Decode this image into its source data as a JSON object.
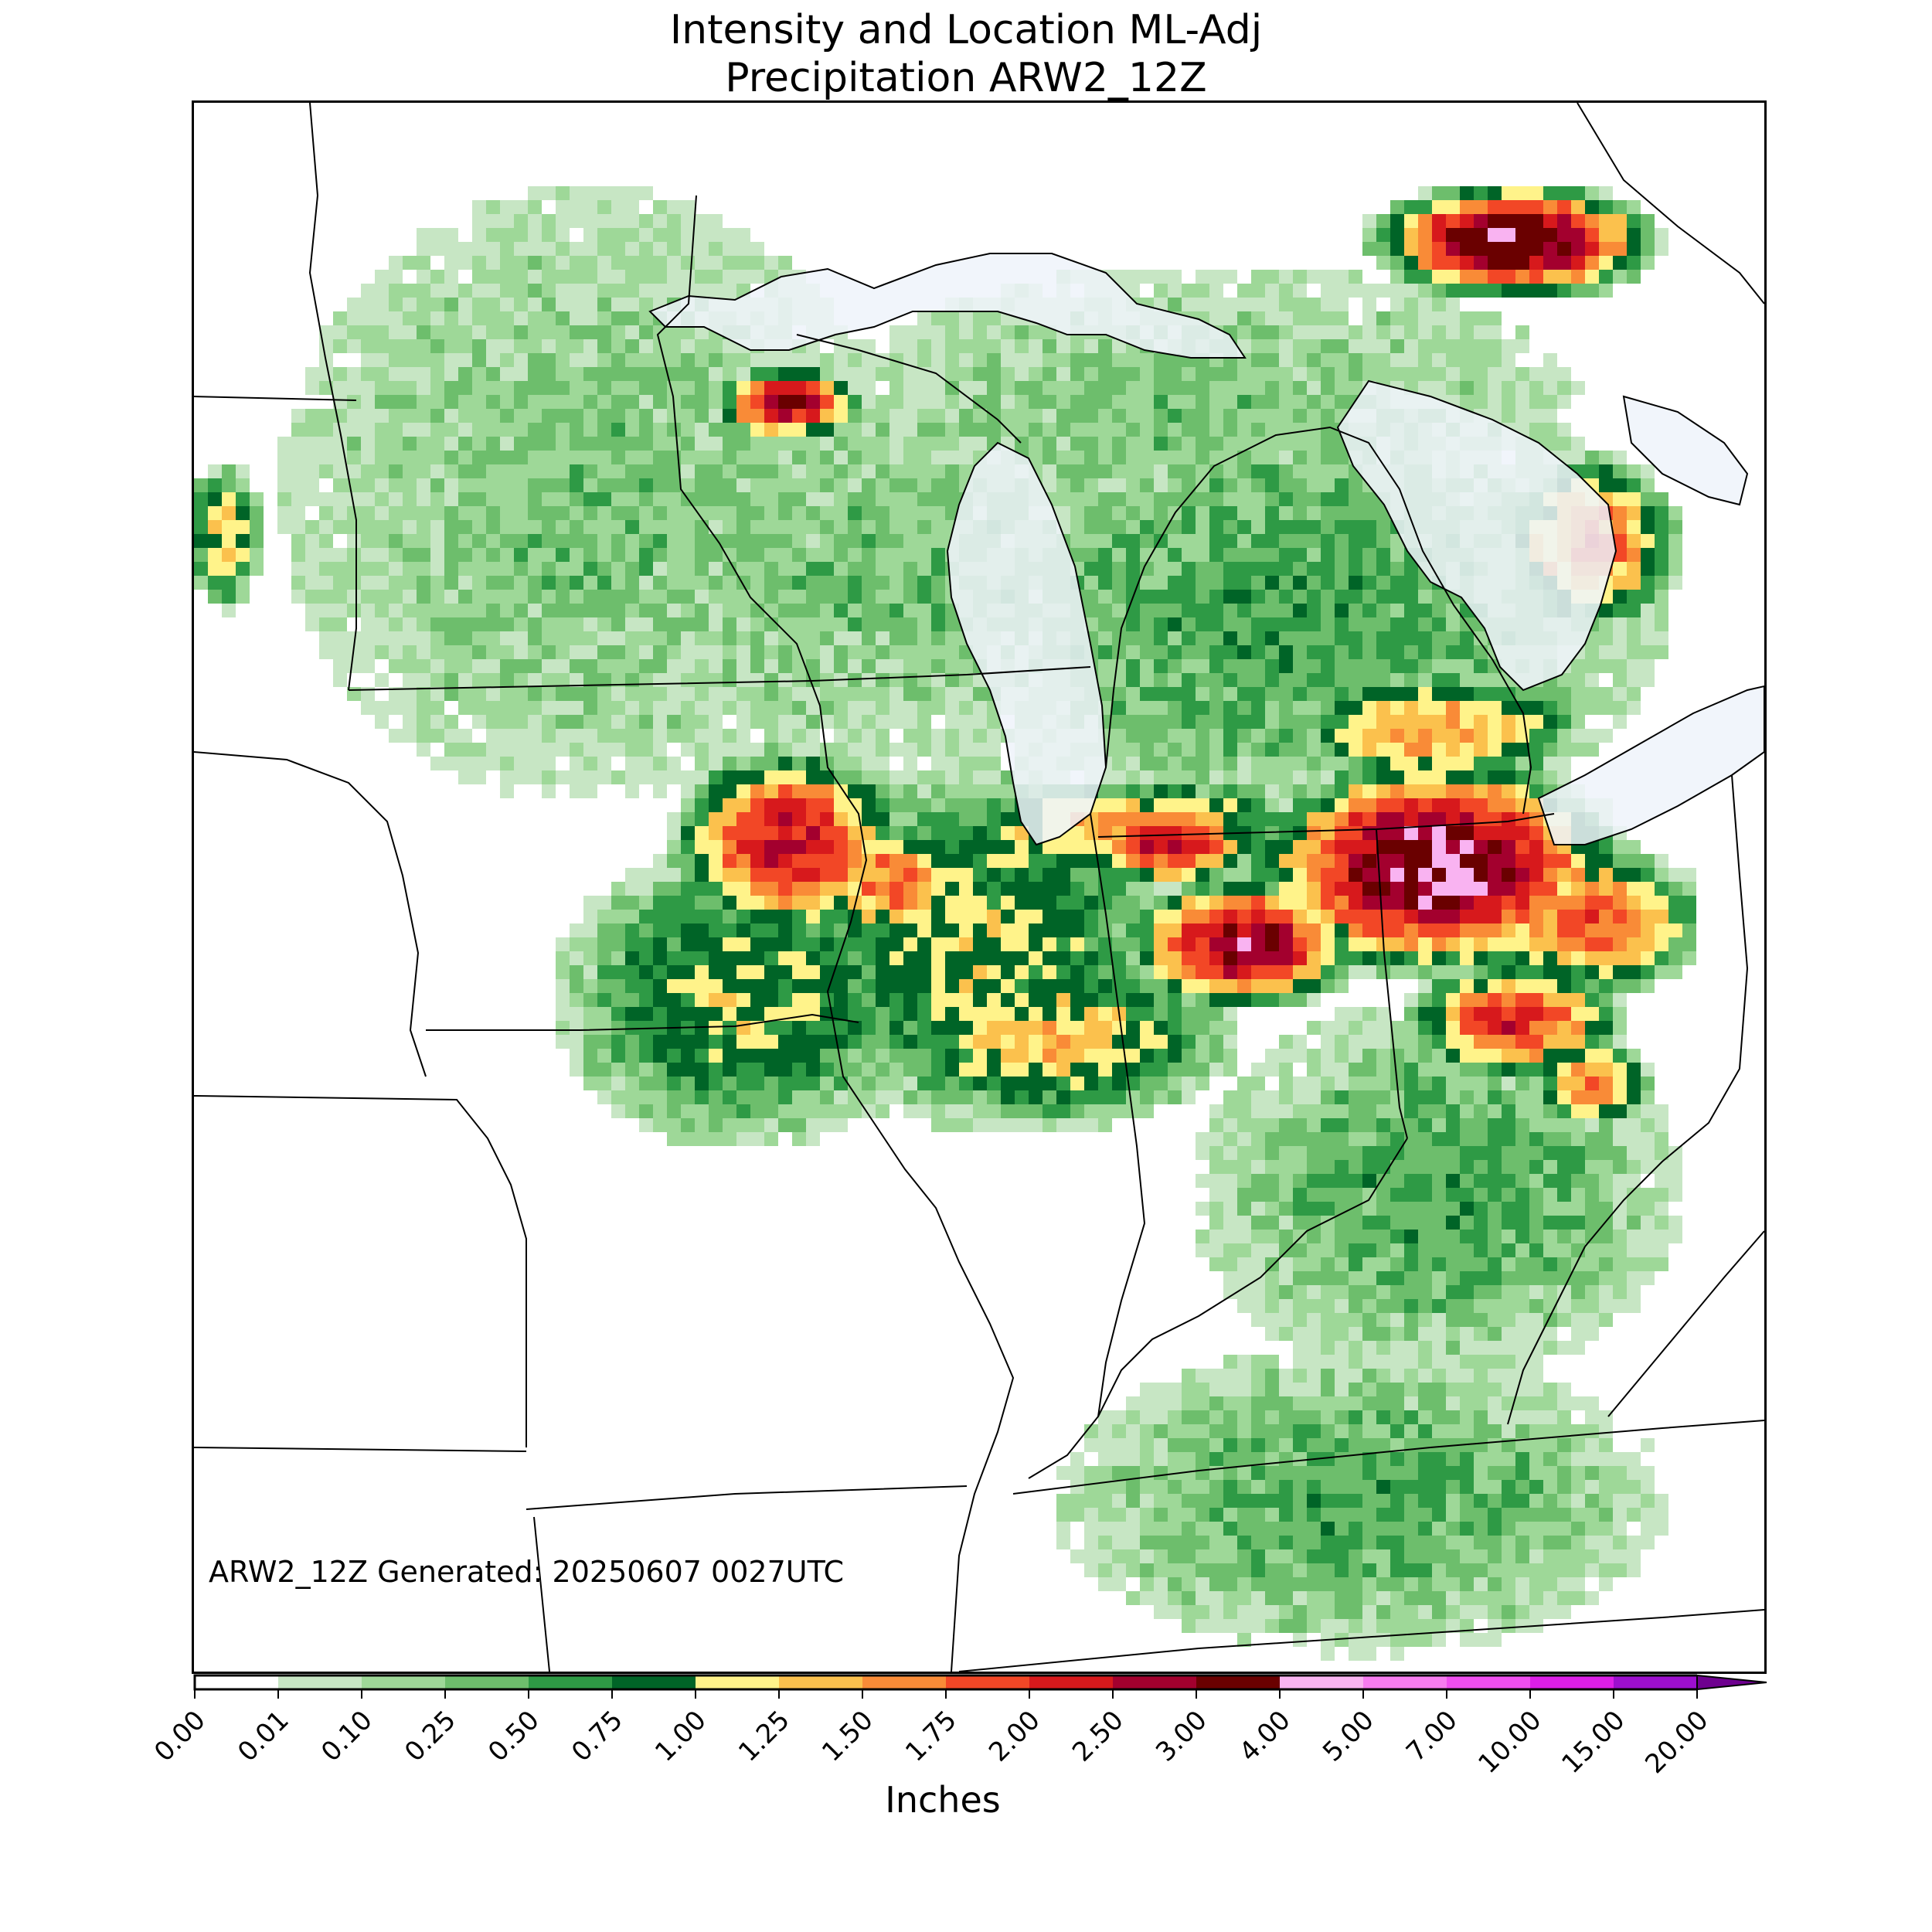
{
  "title": {
    "line1": "Intensity and Location ML-Adj",
    "line2": "Precipitation ARW2_12Z"
  },
  "map": {
    "generated_label": "ARW2_12Z Generated: 20250607 0027UTC",
    "region": "Upper Midwest / Great Lakes / Ohio Valley",
    "water_color": "#eef3fa",
    "border_color": "#000000"
  },
  "colorbar": {
    "label": "Inches",
    "bins": [
      {
        "from": "0.00",
        "to": "0.01",
        "color": "#ffffff"
      },
      {
        "from": "0.01",
        "to": "0.10",
        "color": "#c7e6c4"
      },
      {
        "from": "0.10",
        "to": "0.25",
        "color": "#9ed898"
      },
      {
        "from": "0.25",
        "to": "0.50",
        "color": "#6dbe6c"
      },
      {
        "from": "0.50",
        "to": "0.75",
        "color": "#2e9a45"
      },
      {
        "from": "0.75",
        "to": "1.00",
        "color": "#006427"
      },
      {
        "from": "1.00",
        "to": "1.25",
        "color": "#fff38a"
      },
      {
        "from": "1.25",
        "to": "1.50",
        "color": "#fbc14d"
      },
      {
        "from": "1.50",
        "to": "1.75",
        "color": "#f98b37"
      },
      {
        "from": "1.75",
        "to": "2.00",
        "color": "#f24726"
      },
      {
        "from": "2.00",
        "to": "2.50",
        "color": "#d7191c"
      },
      {
        "from": "2.50",
        "to": "3.00",
        "color": "#a3002e"
      },
      {
        "from": "3.00",
        "to": "4.00",
        "color": "#6a0000"
      },
      {
        "from": "4.00",
        "to": "5.00",
        "color": "#f9b3f1"
      },
      {
        "from": "5.00",
        "to": "7.00",
        "color": "#f77cf0"
      },
      {
        "from": "7.00",
        "to": "10.00",
        "color": "#f04ef0"
      },
      {
        "from": "10.00",
        "to": "15.00",
        "color": "#dd1ee8"
      },
      {
        "from": "15.00",
        "to": "20.00",
        "color": "#9d0fcf"
      }
    ],
    "extend_color": "#6e008f",
    "ticks": [
      "0.00",
      "0.01",
      "0.10",
      "0.25",
      "0.50",
      "0.75",
      "1.00",
      "1.25",
      "1.50",
      "1.75",
      "2.00",
      "2.50",
      "3.00",
      "4.00",
      "5.00",
      "7.00",
      "10.00",
      "15.00",
      "20.00"
    ]
  }
}
